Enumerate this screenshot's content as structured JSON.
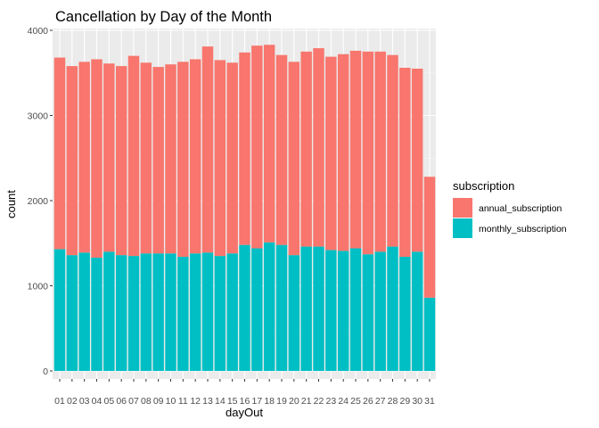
{
  "chart_data": {
    "type": "bar",
    "stacked": true,
    "title": "Cancellation by Day of the Month",
    "xlabel": "dayOut",
    "ylabel": "count",
    "ylim": [
      0,
      4120
    ],
    "yticks": [
      0,
      1000,
      2000,
      3000,
      4000
    ],
    "grid": true,
    "legend_title": "subscription",
    "legend_position": "right",
    "categories": [
      "01",
      "02",
      "03",
      "04",
      "05",
      "06",
      "07",
      "08",
      "09",
      "10",
      "11",
      "12",
      "13",
      "14",
      "15",
      "16",
      "17",
      "18",
      "19",
      "20",
      "21",
      "22",
      "23",
      "24",
      "25",
      "26",
      "27",
      "28",
      "29",
      "30",
      "31"
    ],
    "series": [
      {
        "name": "annual_subscription",
        "color": "#F8766D",
        "values": [
          2250,
          2220,
          2240,
          2330,
          2210,
          2220,
          2350,
          2240,
          2190,
          2220,
          2290,
          2280,
          2420,
          2300,
          2240,
          2260,
          2380,
          2320,
          2230,
          2270,
          2290,
          2330,
          2270,
          2310,
          2320,
          2380,
          2350,
          2250,
          2220,
          2150,
          1420
        ]
      },
      {
        "name": "monthly_subscription",
        "color": "#00BFC4",
        "values": [
          1430,
          1360,
          1390,
          1330,
          1400,
          1360,
          1350,
          1380,
          1380,
          1380,
          1340,
          1380,
          1390,
          1350,
          1380,
          1480,
          1440,
          1510,
          1480,
          1360,
          1460,
          1460,
          1420,
          1410,
          1440,
          1370,
          1400,
          1460,
          1340,
          1400,
          860
        ]
      }
    ]
  }
}
